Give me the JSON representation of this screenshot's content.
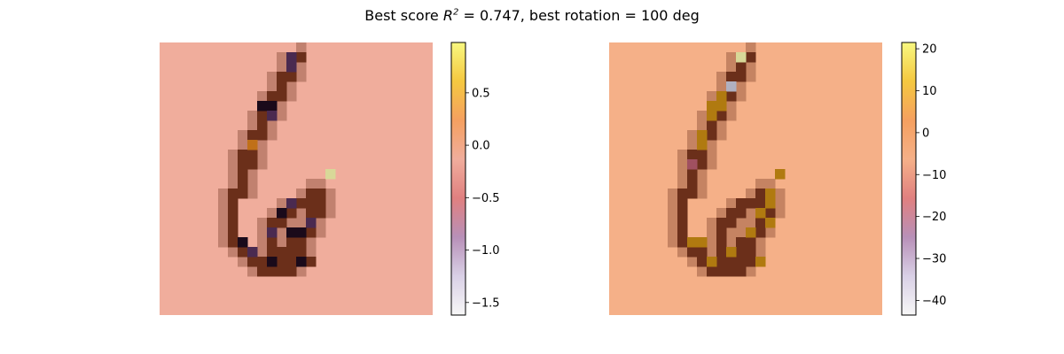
{
  "figure": {
    "title": "Best score",
    "title_r2_symbol": "R",
    "title_r2_exp": "2",
    "title_rest": " = 0.747, best rotation = 100 deg"
  },
  "chart_data": [
    {
      "type": "heatmap",
      "grid_size": [
        28,
        28
      ],
      "background_color": "#f0ad9c",
      "colormap": [
        "#f7f7f7",
        "#d9d0e6",
        "#b890b8",
        "#e08080",
        "#f0ad9c",
        "#f5a060",
        "#f5c840",
        "#f8f880"
      ],
      "colorbar": {
        "ticks": [
          "0.5",
          "0.0",
          "−0.5",
          "−1.0",
          "−1.5"
        ],
        "tick_values": [
          0.5,
          0.0,
          -0.5,
          -1.0,
          -1.5
        ],
        "vmin": -1.62,
        "vmax": 0.98
      },
      "stroke_color": "#6b2f1a",
      "highlight_colors": {
        "dark": "#1a0a1a",
        "purple": "#4a2a50",
        "orange": "#c07018",
        "yellow": "#d8d898"
      }
    },
    {
      "type": "heatmap",
      "grid_size": [
        28,
        28
      ],
      "background_color": "#f5b088",
      "colormap": [
        "#f7f7f7",
        "#d9d0e6",
        "#b890b8",
        "#e08080",
        "#f5b088",
        "#f5a060",
        "#f5c840",
        "#f8f880"
      ],
      "colorbar": {
        "ticks": [
          "20",
          "10",
          "0",
          "−10",
          "−20",
          "−30",
          "−40"
        ],
        "tick_values": [
          20,
          10,
          0,
          -10,
          -20,
          -30,
          -40
        ],
        "vmin": -43.5,
        "vmax": 21.5
      },
      "stroke_color": "#6b2f1a",
      "highlight_colors": {
        "orange": "#b07a10",
        "yellow": "#d8d898",
        "grey": "#b0b0c0",
        "pink": "#a05060"
      }
    }
  ]
}
